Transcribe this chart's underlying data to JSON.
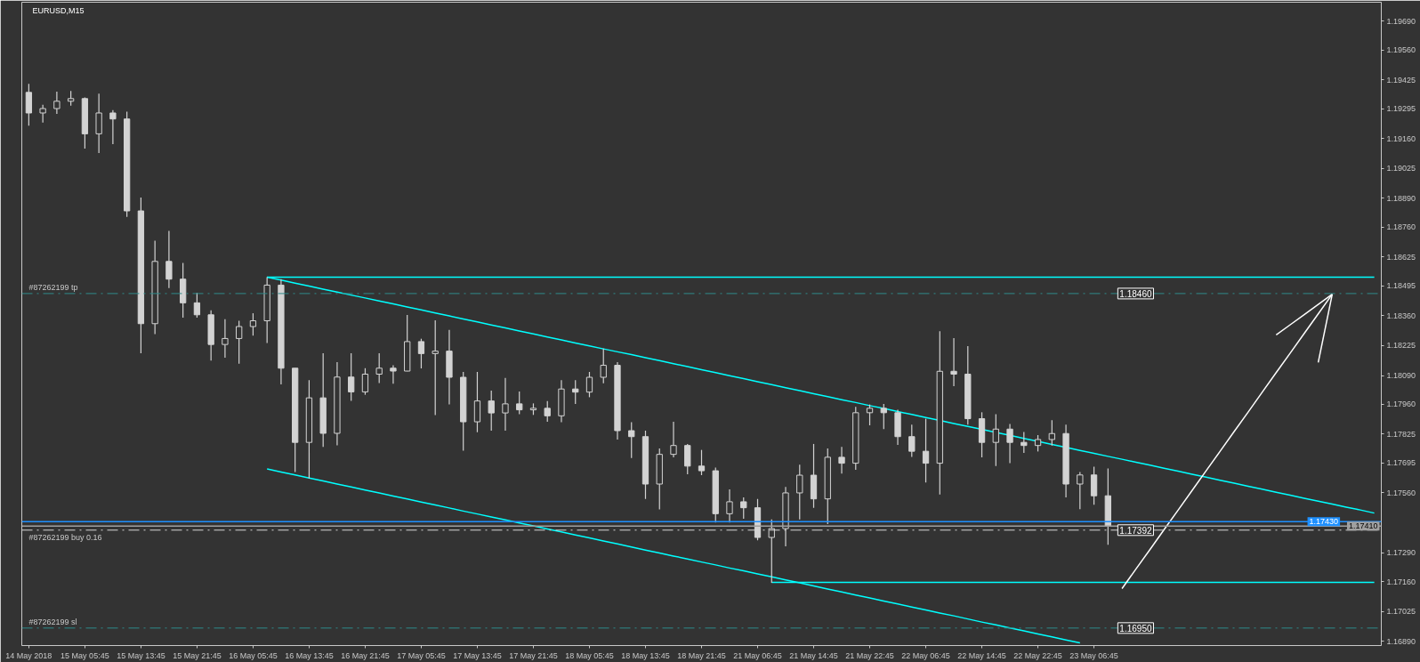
{
  "chart_data": {
    "type": "candlestick",
    "title": "EURUSD,M15",
    "color": "#d3d3d3",
    "categories": [
      "14 May 2018",
      null,
      null,
      null,
      "15 May 05:45",
      null,
      null,
      null,
      "15 May 13:45",
      null,
      null,
      null,
      "15 May 21:45",
      null,
      null,
      null,
      "16 May 05:45",
      null,
      null,
      null,
      "16 May 13:45",
      null,
      null,
      null,
      "16 May 21:45",
      null,
      null,
      null,
      "17 May 05:45",
      null,
      null,
      null,
      "17 May 13:45",
      null,
      null,
      null,
      "17 May 21:45",
      null,
      null,
      null,
      "18 May 05:45",
      null,
      null,
      null,
      "18 May 13:45",
      null,
      null,
      null,
      "18 May 21:45",
      null,
      null,
      null,
      "21 May 06:45",
      null,
      null,
      null,
      "21 May 14:45",
      null,
      null,
      null,
      "21 May 22:45",
      null,
      null,
      null,
      "22 May 06:45",
      null,
      null,
      null,
      "22 May 14:45",
      null,
      null,
      null,
      "22 May 22:45",
      null,
      null,
      null,
      "23 May 06:45",
      null,
      null,
      null,
      null,
      null,
      null,
      null,
      null,
      null,
      null,
      null,
      null,
      null,
      null,
      null,
      null,
      null,
      null,
      null,
      null
    ],
    "ohlc": [
      [
        1.19368,
        1.19406,
        1.19218,
        1.19275
      ],
      [
        1.19275,
        1.19312,
        1.19232,
        1.19295
      ],
      [
        1.19295,
        1.19371,
        1.19271,
        1.19328
      ],
      [
        1.19328,
        1.19374,
        1.19308,
        1.1934
      ],
      [
        1.1934,
        1.19345,
        1.19114,
        1.19181
      ],
      [
        1.19181,
        1.19362,
        1.19094,
        1.19275
      ],
      [
        1.19275,
        1.19288,
        1.19134,
        1.19248
      ],
      [
        1.19248,
        1.19281,
        1.18806,
        1.18833
      ],
      [
        1.18833,
        1.18893,
        1.1819,
        1.18324
      ],
      [
        1.18324,
        1.18699,
        1.18277,
        1.18605
      ],
      [
        1.18605,
        1.18743,
        1.18485,
        1.18525
      ],
      [
        1.18525,
        1.18598,
        1.18351,
        1.18418
      ],
      [
        1.18418,
        1.18464,
        1.18351,
        1.18364
      ],
      [
        1.18364,
        1.18384,
        1.18157,
        1.1823
      ],
      [
        1.1823,
        1.18344,
        1.1817,
        1.18257
      ],
      [
        1.18257,
        1.18337,
        1.18143,
        1.18311
      ],
      [
        1.18311,
        1.18371,
        1.1827,
        1.18337
      ],
      [
        1.18337,
        1.18534,
        1.18237,
        1.18498
      ],
      [
        1.18498,
        1.18525,
        1.1805,
        1.18123
      ],
      [
        1.18123,
        1.18123,
        1.17654,
        1.17788
      ],
      [
        1.17788,
        1.18069,
        1.17625,
        1.17989
      ],
      [
        1.17989,
        1.1819,
        1.17768,
        1.17829
      ],
      [
        1.17829,
        1.1815,
        1.17775,
        1.18083
      ],
      [
        1.18083,
        1.1819,
        1.17976,
        1.18016
      ],
      [
        1.18016,
        1.18123,
        1.18003,
        1.18096
      ],
      [
        1.18096,
        1.1819,
        1.18056,
        1.18123
      ],
      [
        1.18123,
        1.18136,
        1.18053,
        1.1811
      ],
      [
        1.1811,
        1.18363,
        1.18109,
        1.18243
      ],
      [
        1.18243,
        1.18256,
        1.18122,
        1.18189
      ],
      [
        1.18189,
        1.18339,
        1.17911,
        1.182
      ],
      [
        1.182,
        1.18296,
        1.17959,
        1.18082
      ],
      [
        1.18082,
        1.18106,
        1.17751,
        1.17881
      ],
      [
        1.17881,
        1.18106,
        1.17834,
        1.17975
      ],
      [
        1.17975,
        1.18022,
        1.17841,
        1.17921
      ],
      [
        1.17921,
        1.18079,
        1.17841,
        1.17962
      ],
      [
        1.17962,
        1.18018,
        1.17915,
        1.17935
      ],
      [
        1.17935,
        1.17964,
        1.17912,
        1.17942
      ],
      [
        1.17942,
        1.17975,
        1.17881,
        1.17908
      ],
      [
        1.17908,
        1.18069,
        1.17879,
        1.18029
      ],
      [
        1.18029,
        1.18069,
        1.17962,
        1.18015
      ],
      [
        1.18015,
        1.18106,
        1.17992,
        1.18082
      ],
      [
        1.18082,
        1.18212,
        1.18055,
        1.18136
      ],
      [
        1.18136,
        1.1815,
        1.17801,
        1.17841
      ],
      [
        1.17841,
        1.17879,
        1.17718,
        1.17814
      ],
      [
        1.17814,
        1.17841,
        1.17533,
        1.176
      ],
      [
        1.176,
        1.17761,
        1.17486,
        1.17734
      ],
      [
        1.17734,
        1.17881,
        1.17721,
        1.17774
      ],
      [
        1.17774,
        1.17781,
        1.17644,
        1.17681
      ],
      [
        1.17681,
        1.17754,
        1.1764,
        1.1766
      ],
      [
        1.1766,
        1.17674,
        1.17426,
        1.17466
      ],
      [
        1.17466,
        1.17576,
        1.17426,
        1.1752
      ],
      [
        1.1752,
        1.1754,
        1.17443,
        1.17493
      ],
      [
        1.17493,
        1.17533,
        1.17346,
        1.17359
      ],
      [
        1.17359,
        1.1744,
        1.17154,
        1.17399
      ],
      [
        1.17399,
        1.17587,
        1.17319,
        1.1756
      ],
      [
        1.1756,
        1.17687,
        1.1744,
        1.1764
      ],
      [
        1.1764,
        1.17781,
        1.17493,
        1.17533
      ],
      [
        1.17533,
        1.17761,
        1.17419,
        1.17721
      ],
      [
        1.17721,
        1.17768,
        1.17647,
        1.17694
      ],
      [
        1.17694,
        1.17948,
        1.17664,
        1.17922
      ],
      [
        1.17922,
        1.17959,
        1.17865,
        1.17942
      ],
      [
        1.17942,
        1.17962,
        1.17848,
        1.17922
      ],
      [
        1.17922,
        1.17935,
        1.17777,
        1.17814
      ],
      [
        1.17814,
        1.17868,
        1.17723,
        1.17748
      ],
      [
        1.17748,
        1.17895,
        1.17607,
        1.17694
      ],
      [
        1.17694,
        1.1829,
        1.17553,
        1.18109
      ],
      [
        1.18109,
        1.18259,
        1.18042,
        1.18096
      ],
      [
        1.18096,
        1.18223,
        1.17868,
        1.17895
      ],
      [
        1.17895,
        1.17924,
        1.17721,
        1.17788
      ],
      [
        1.17788,
        1.17915,
        1.17681,
        1.17848
      ],
      [
        1.17848,
        1.17871,
        1.17694,
        1.17788
      ],
      [
        1.17788,
        1.17835,
        1.17741,
        1.17774
      ],
      [
        1.17774,
        1.17821,
        1.17747,
        1.17801
      ],
      [
        1.17801,
        1.17888,
        1.17774,
        1.17828
      ],
      [
        1.17828,
        1.17868,
        1.1754,
        1.176
      ],
      [
        1.176,
        1.17654,
        1.17487,
        1.17641
      ],
      [
        1.17641,
        1.17678,
        1.17507,
        1.17547
      ],
      [
        1.17547,
        1.1767,
        1.17326,
        1.1741
      ],
      null,
      null,
      null,
      null,
      null,
      null,
      null,
      null,
      null,
      null,
      null,
      null,
      null,
      null,
      null,
      null,
      null,
      null,
      null
    ],
    "series": [
      {
        "type": "line",
        "color": "#00ffff",
        "values": [
          null,
          null,
          null,
          null,
          null,
          null,
          null,
          null,
          null,
          null,
          null,
          null,
          null,
          null,
          null,
          null,
          null,
          1.18534,
          1.18534,
          1.18534,
          1.18534,
          1.18534,
          1.18534,
          1.18534,
          1.18534,
          1.18534,
          1.18534,
          1.18534,
          1.18534,
          1.18534,
          1.18534,
          1.18534,
          1.18534,
          1.18534,
          1.18534,
          1.18534,
          1.18534,
          1.18534,
          1.18534,
          1.18534,
          1.18534,
          1.18534,
          1.18534,
          1.18534,
          1.18534,
          1.18534,
          1.18534,
          1.18534,
          1.18534,
          1.18534,
          1.18534,
          1.18534,
          1.18534,
          1.18534,
          1.18534,
          1.18534,
          1.18534,
          1.18534,
          1.18534,
          1.18534,
          1.18534,
          1.18534,
          1.18534,
          1.18534,
          1.18534,
          1.18534,
          1.18534,
          1.18534,
          1.18534,
          1.18534,
          1.18534,
          1.18534,
          1.18534,
          1.18534,
          1.18534,
          1.18534,
          1.18534,
          1.18534,
          1.18534,
          1.18534,
          1.18534,
          1.18534,
          1.18534,
          1.18534,
          1.18534,
          1.18534,
          1.18534,
          1.18534,
          1.18534,
          1.18534,
          1.18534,
          1.18534,
          1.18534,
          1.18534,
          1.18534,
          1.18534,
          1.18534
        ]
      },
      {
        "type": "line",
        "color": "#00ffff",
        "values": [
          null,
          null,
          null,
          null,
          null,
          null,
          null,
          null,
          null,
          null,
          null,
          null,
          null,
          null,
          null,
          null,
          null,
          1.18534,
          1.18521,
          1.18507,
          1.18494,
          1.1848,
          1.18467,
          1.18453,
          1.1844,
          1.18426,
          1.18413,
          1.18399,
          1.18386,
          1.18372,
          1.18359,
          1.18345,
          1.18332,
          1.18318,
          1.18305,
          1.18291,
          1.18278,
          1.18264,
          1.18251,
          1.18237,
          1.18224,
          1.1821,
          1.18197,
          1.18184,
          1.1817,
          1.18157,
          1.18143,
          1.1813,
          1.18116,
          1.18103,
          1.18089,
          1.18076,
          1.18062,
          1.18049,
          1.18035,
          1.18022,
          1.18008,
          1.17995,
          1.17981,
          1.17968,
          1.17954,
          1.17941,
          1.17927,
          1.17914,
          1.179,
          1.17887,
          1.17873,
          1.1786,
          1.17847,
          1.17833,
          1.1782,
          1.17806,
          1.17793,
          1.17779,
          1.17766,
          1.17752,
          1.17739,
          1.17725,
          1.17712,
          1.17698,
          1.17685,
          1.17671,
          1.17658,
          1.17644,
          1.17631,
          1.17617,
          1.17604,
          1.1759,
          1.17577,
          1.17563,
          1.1755,
          1.17536,
          1.17523,
          1.1751,
          1.17496,
          1.17483,
          1.17469
        ]
      },
      {
        "type": "line",
        "color": "#00ffff",
        "values": [
          null,
          null,
          null,
          null,
          null,
          null,
          null,
          null,
          null,
          null,
          null,
          null,
          null,
          null,
          null,
          null,
          null,
          1.17668,
          1.17654,
          1.17641,
          1.17627,
          1.17614,
          1.176,
          1.17587,
          1.17573,
          1.1756,
          1.17546,
          1.17533,
          1.17519,
          1.17506,
          1.17492,
          1.17478,
          1.17465,
          1.17451,
          1.17438,
          1.17424,
          1.17411,
          1.17397,
          1.17384,
          1.1737,
          1.17357,
          1.17343,
          1.1733,
          1.17316,
          1.17302,
          1.17289,
          1.17275,
          1.17262,
          1.17248,
          1.17235,
          1.17221,
          1.17208,
          1.17194,
          1.17181,
          1.17167,
          1.17154,
          1.1714,
          1.17126,
          1.17113,
          1.17099,
          1.17086,
          1.17072,
          1.17059,
          1.17045,
          1.17032,
          1.17018,
          1.17005,
          1.16991,
          1.16977,
          1.16964,
          1.1695,
          1.16937,
          1.16923,
          1.1691,
          1.16896,
          1.16883,
          null,
          null,
          null,
          null,
          null,
          null,
          null,
          null,
          null,
          null,
          null,
          null,
          null,
          null,
          null,
          null,
          null,
          null,
          null,
          null,
          null
        ]
      },
      {
        "type": "line",
        "color": "#00ffff",
        "values": [
          null,
          null,
          null,
          null,
          null,
          null,
          null,
          null,
          null,
          null,
          null,
          null,
          null,
          null,
          null,
          null,
          null,
          null,
          null,
          null,
          null,
          null,
          null,
          null,
          null,
          null,
          null,
          null,
          null,
          null,
          null,
          null,
          null,
          null,
          null,
          null,
          null,
          null,
          null,
          null,
          null,
          null,
          null,
          null,
          null,
          null,
          null,
          null,
          null,
          null,
          null,
          null,
          null,
          1.17156,
          1.17156,
          1.17156,
          1.17156,
          1.17156,
          1.17156,
          1.17156,
          1.17156,
          1.17156,
          1.17156,
          1.17156,
          1.17156,
          1.17156,
          1.17156,
          1.17156,
          1.17156,
          1.17156,
          1.17156,
          1.17156,
          1.17156,
          1.17156,
          1.17156,
          1.17156,
          1.17156,
          1.17156,
          1.17156,
          1.17156,
          1.17156,
          1.17156,
          1.17156,
          1.17156,
          1.17156,
          1.17156,
          1.17156,
          1.17156,
          1.17156,
          1.17156,
          1.17156,
          1.17156,
          1.17156,
          1.17156,
          1.17156,
          1.17156,
          1.17156
        ]
      },
      {
        "type": "line",
        "color": "#ffffff",
        "values": [
          null,
          null,
          null,
          null,
          null,
          null,
          null,
          null,
          null,
          null,
          null,
          null,
          null,
          null,
          null,
          null,
          null,
          null,
          null,
          null,
          null,
          null,
          null,
          null,
          null,
          null,
          null,
          null,
          null,
          null,
          null,
          null,
          null,
          null,
          null,
          null,
          null,
          null,
          null,
          null,
          null,
          null,
          null,
          null,
          null,
          null,
          null,
          null,
          null,
          null,
          null,
          null,
          null,
          null,
          null,
          null,
          null,
          null,
          null,
          null,
          null,
          null,
          null,
          null,
          null,
          null,
          null,
          null,
          null,
          null,
          null,
          null,
          null,
          null,
          null,
          null,
          null,
          null,
          1.17128,
          1.17217,
          1.17305,
          1.17394,
          1.17482,
          1.17571,
          1.1766,
          1.17748,
          1.17837,
          1.17925,
          1.18014,
          1.18103,
          1.18191,
          1.1828,
          1.18368,
          1.18457,
          null,
          null,
          null
        ]
      },
      {
        "type": "line",
        "color": "#ffffff",
        "values": [
          null,
          null,
          null,
          null,
          null,
          null,
          null,
          null,
          null,
          null,
          null,
          null,
          null,
          null,
          null,
          null,
          null,
          null,
          null,
          null,
          null,
          null,
          null,
          null,
          null,
          null,
          null,
          null,
          null,
          null,
          null,
          null,
          null,
          null,
          null,
          null,
          null,
          null,
          null,
          null,
          null,
          null,
          null,
          null,
          null,
          null,
          null,
          null,
          null,
          null,
          null,
          null,
          null,
          null,
          null,
          null,
          null,
          null,
          null,
          null,
          null,
          null,
          null,
          null,
          null,
          null,
          null,
          null,
          null,
          null,
          null,
          null,
          null,
          null,
          null,
          null,
          null,
          null,
          null,
          null,
          null,
          null,
          null,
          null,
          null,
          null,
          null,
          null,
          null,
          1.18273,
          1.18319,
          1.18365,
          1.18411,
          1.18457,
          null,
          null,
          null
        ]
      },
      {
        "type": "line",
        "color": "#ffffff",
        "values": [
          null,
          null,
          null,
          null,
          null,
          null,
          null,
          null,
          null,
          null,
          null,
          null,
          null,
          null,
          null,
          null,
          null,
          null,
          null,
          null,
          null,
          null,
          null,
          null,
          null,
          null,
          null,
          null,
          null,
          null,
          null,
          null,
          null,
          null,
          null,
          null,
          null,
          null,
          null,
          null,
          null,
          null,
          null,
          null,
          null,
          null,
          null,
          null,
          null,
          null,
          null,
          null,
          null,
          null,
          null,
          null,
          null,
          null,
          null,
          null,
          null,
          null,
          null,
          null,
          null,
          null,
          null,
          null,
          null,
          null,
          null,
          null,
          null,
          null,
          null,
          null,
          null,
          null,
          null,
          null,
          null,
          null,
          null,
          null,
          null,
          null,
          null,
          null,
          null,
          null,
          null,
          null,
          1.18149,
          1.18457,
          null,
          null,
          null
        ]
      }
    ],
    "ylim": [
      1.16871,
      1.19775
    ],
    "yticks": [
      {
        "value": 1.1969,
        "label": "1.19690"
      },
      {
        "value": 1.1956,
        "label": "1.19560"
      },
      {
        "value": 1.19425,
        "label": "1.19425"
      },
      {
        "value": 1.19295,
        "label": "1.19295"
      },
      {
        "value": 1.1916,
        "label": "1.19160"
      },
      {
        "value": 1.19025,
        "label": "1.19025"
      },
      {
        "value": 1.1889,
        "label": "1.18890"
      },
      {
        "value": 1.1876,
        "label": "1.18760"
      },
      {
        "value": 1.18625,
        "label": "1.18625"
      },
      {
        "value": 1.18495,
        "label": "1.18495"
      },
      {
        "value": 1.1836,
        "label": "1.18360"
      },
      {
        "value": 1.18225,
        "label": "1.18225"
      },
      {
        "value": 1.1809,
        "label": "1.18090"
      },
      {
        "value": 1.1796,
        "label": "1.17960"
      },
      {
        "value": 1.17825,
        "label": "1.17825"
      },
      {
        "value": 1.17695,
        "label": "1.17695"
      },
      {
        "value": 1.1756,
        "label": "1.17560"
      },
      {
        "value": 1.1729,
        "label": "1.17290"
      },
      {
        "value": 1.1716,
        "label": "1.17160"
      },
      {
        "value": 1.17025,
        "label": "1.17025"
      },
      {
        "value": 1.1689,
        "label": "1.16890"
      }
    ],
    "ref_lines": [
      {
        "axis": "y",
        "value": 1.1846,
        "label": "#87262199 tp",
        "color": "#2e8b8b",
        "line_style": "dashdot"
      },
      {
        "axis": "y",
        "value": 1.17392,
        "label": "#87262199 buy 0.16",
        "color": "#d8d8d8",
        "line_style": "dashdot"
      },
      {
        "axis": "y",
        "value": 1.1695,
        "label": "#87262199 sl",
        "color": "#2e8b8b",
        "line_style": "dashdot"
      },
      {
        "axis": "y",
        "value": 1.1743,
        "label": "1.17430",
        "color": "#1e90ff",
        "line_style": "solid"
      },
      {
        "axis": "y",
        "value": 1.1741,
        "label": "1.17410",
        "color": "#a0a0a0",
        "line_style": "solid"
      }
    ],
    "annotations": [
      {
        "text": "1.18460",
        "y": 1.1846
      },
      {
        "text": "1.17392",
        "y": 1.17392
      },
      {
        "text": "1.16950",
        "y": 1.1695
      }
    ],
    "grid": false
  }
}
